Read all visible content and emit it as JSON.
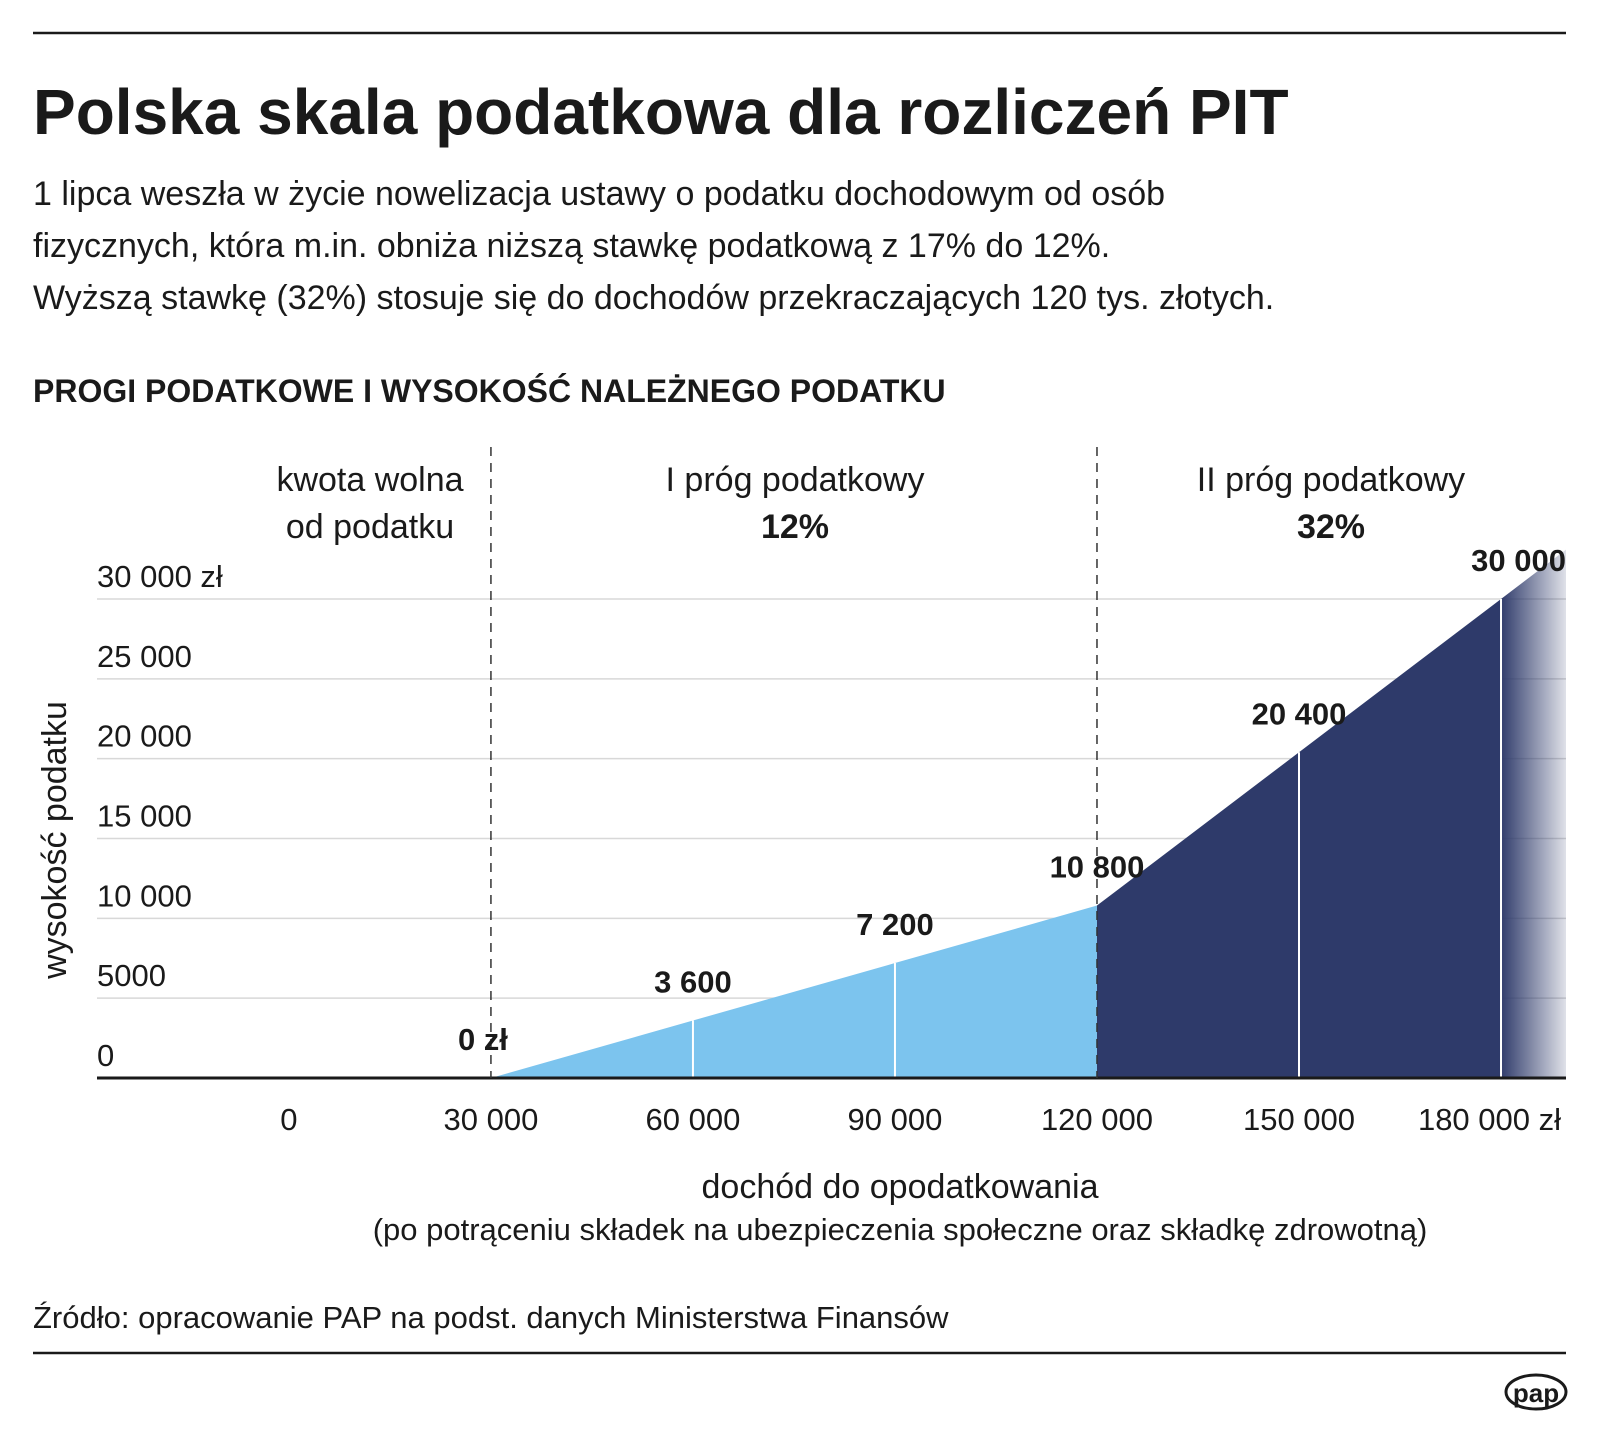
{
  "header": {
    "title": "Polska skala podatkowa dla rozliczeń PIT",
    "subtitle": [
      "1 lipca weszła w życie nowelizacja ustawy o podatku dochodowym od osób",
      "fizycznych, która m.in. obniża niższą stawkę podatkową z 17% do 12%.",
      "Wyższą stawkę (32%) stosuje się do dochodów przekraczających 120 tys. złotych."
    ]
  },
  "chart_data": {
    "type": "area",
    "title": "PROGI PODATKOWE I WYSOKOŚĆ NALEŻNEGO PODATKU",
    "x_label": "dochód do opodatkowania",
    "x_note": "(po potrąceniu składek na ubezpieczenia społeczne oraz składkę zdrowotną)",
    "y_label": "wysokość podatku",
    "x": [
      30000,
      60000,
      90000,
      120000,
      150000,
      180000,
      189650
    ],
    "series": [
      {
        "color": "#7cc4ee",
        "values": [
          0,
          3600,
          7200,
          10800,
          null,
          null,
          null
        ]
      },
      {
        "color": "#2e3a6a",
        "values": [
          null,
          null,
          null,
          10800,
          20400,
          30000,
          33090
        ],
        "fade": true
      }
    ],
    "value_labels": [
      "0 zł",
      "3 600",
      "7 200",
      "10 800",
      "20 400",
      "30 000",
      null
    ],
    "thresholds": [
      30000,
      120000
    ],
    "regions": [
      {
        "lines": [
          "kwota wolna",
          "od podatku"
        ]
      },
      {
        "lines": [
          "I próg podatkowy",
          "12%"
        ]
      },
      {
        "lines": [
          "II próg podatkowy",
          "32%"
        ]
      }
    ],
    "xlim": [
      -28500,
      189650
    ],
    "ylim": [
      0,
      33100
    ],
    "xticks": [
      0,
      {
        "value": 30000,
        "label": "30 000"
      },
      {
        "value": 60000,
        "label": "60 000"
      },
      {
        "value": 90000,
        "label": "90 000"
      },
      {
        "value": 120000,
        "label": "120 000"
      },
      {
        "value": 150000,
        "label": "150 000"
      },
      {
        "value": 180000,
        "label": "180 000 zł"
      }
    ],
    "yticks": [
      0,
      5000,
      {
        "value": 10000,
        "label": "10 000"
      },
      {
        "value": 15000,
        "label": "15 000"
      },
      {
        "value": 20000,
        "label": "20 000"
      },
      {
        "value": 25000,
        "label": "25 000"
      },
      {
        "value": 30000,
        "label": "30 000 zł"
      }
    ],
    "grid": true
  },
  "footer": {
    "source": "Źródło: opracowanie PAP na podst. danych Ministerstwa Finansów",
    "logo": "pap"
  }
}
